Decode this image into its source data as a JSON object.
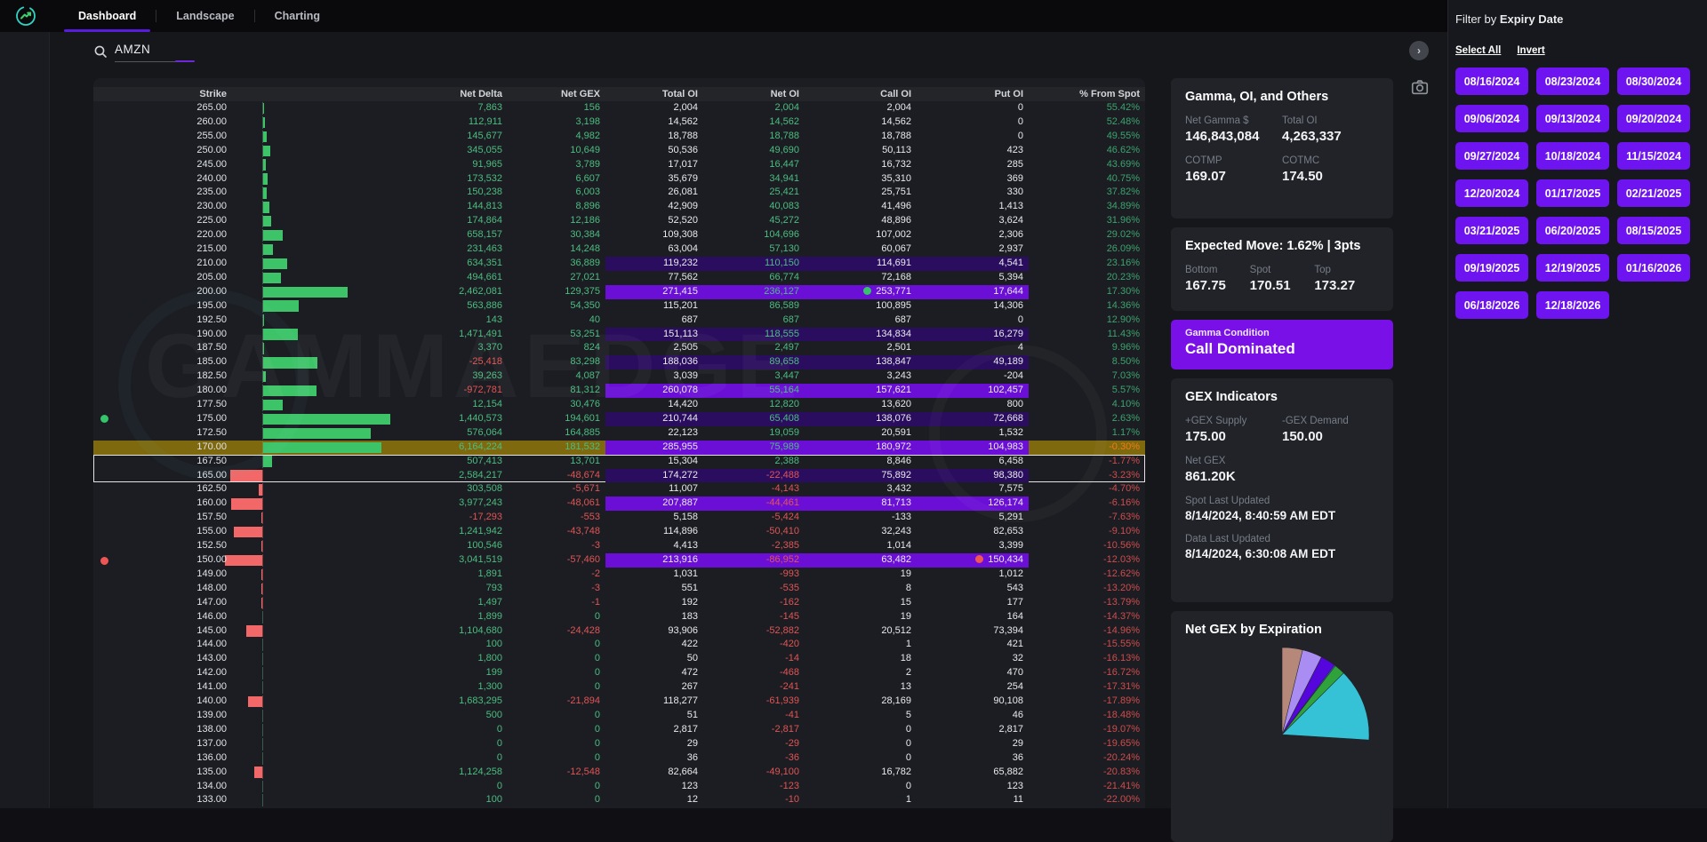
{
  "topbar": {
    "tabs": [
      {
        "label": "Dashboard",
        "active": true
      },
      {
        "label": "Landscape",
        "active": false
      },
      {
        "label": "Charting",
        "active": false
      }
    ]
  },
  "search": {
    "value": "AMZN"
  },
  "watermark": "GAMMAEDGE",
  "side_buttons": {
    "chevron": "›"
  },
  "table": {
    "columns": [
      "Strike",
      "Net Delta",
      "Net GEX",
      "Total OI",
      "Net OI",
      "Call OI",
      "Put OI",
      "% From Spot"
    ],
    "rows": [
      {
        "s": "265.00",
        "nd": "7,863",
        "gex": "156",
        "toi": "2,004",
        "noi": "2,004",
        "coi": "2,004",
        "poi": "0",
        "pct": "55.42%"
      },
      {
        "s": "260.00",
        "nd": "112,911",
        "gex": "3,198",
        "toi": "14,562",
        "noi": "14,562",
        "coi": "14,562",
        "poi": "0",
        "pct": "52.48%"
      },
      {
        "s": "255.00",
        "nd": "145,677",
        "gex": "4,982",
        "toi": "18,788",
        "noi": "18,788",
        "coi": "18,788",
        "poi": "0",
        "pct": "49.55%"
      },
      {
        "s": "250.00",
        "nd": "345,055",
        "gex": "10,649",
        "toi": "50,536",
        "noi": "49,690",
        "coi": "50,113",
        "poi": "423",
        "pct": "46.62%"
      },
      {
        "s": "245.00",
        "nd": "91,965",
        "gex": "3,789",
        "toi": "17,017",
        "noi": "16,447",
        "coi": "16,732",
        "poi": "285",
        "pct": "43.69%"
      },
      {
        "s": "240.00",
        "nd": "173,532",
        "gex": "6,607",
        "toi": "35,679",
        "noi": "34,941",
        "coi": "35,310",
        "poi": "369",
        "pct": "40.75%"
      },
      {
        "s": "235.00",
        "nd": "150,238",
        "gex": "6,003",
        "toi": "26,081",
        "noi": "25,421",
        "coi": "25,751",
        "poi": "330",
        "pct": "37.82%"
      },
      {
        "s": "230.00",
        "nd": "144,813",
        "gex": "8,896",
        "toi": "42,909",
        "noi": "40,083",
        "coi": "41,496",
        "poi": "1,413",
        "pct": "34.89%"
      },
      {
        "s": "225.00",
        "nd": "174,864",
        "gex": "12,186",
        "toi": "52,520",
        "noi": "45,272",
        "coi": "48,896",
        "poi": "3,624",
        "pct": "31.96%"
      },
      {
        "s": "220.00",
        "nd": "658,157",
        "gex": "30,384",
        "toi": "109,308",
        "noi": "104,696",
        "coi": "107,002",
        "poi": "2,306",
        "pct": "29.02%"
      },
      {
        "s": "215.00",
        "nd": "231,463",
        "gex": "14,248",
        "toi": "63,004",
        "noi": "57,130",
        "coi": "60,067",
        "poi": "2,937",
        "pct": "26.09%"
      },
      {
        "s": "210.00",
        "nd": "634,351",
        "gex": "36,889",
        "toi": "119,232",
        "noi": "110,150",
        "coi": "114,691",
        "poi": "4,541",
        "pct": "23.16%",
        "blk": "pd"
      },
      {
        "s": "205.00",
        "nd": "494,661",
        "gex": "27,021",
        "toi": "77,562",
        "noi": "66,774",
        "coi": "72,168",
        "poi": "5,394",
        "pct": "20.23%"
      },
      {
        "s": "200.00",
        "nd": "2,462,081",
        "gex": "129,375",
        "toi": "271,415",
        "noi": "236,127",
        "coi": "253,771",
        "poi": "17,644",
        "pct": "17.30%",
        "blk": "pb",
        "dc": "g"
      },
      {
        "s": "195.00",
        "nd": "563,886",
        "gex": "54,350",
        "toi": "115,201",
        "noi": "86,589",
        "coi": "100,895",
        "poi": "14,306",
        "pct": "14.36%"
      },
      {
        "s": "192.50",
        "nd": "143",
        "gex": "40",
        "toi": "687",
        "noi": "687",
        "coi": "687",
        "poi": "0",
        "pct": "12.90%"
      },
      {
        "s": "190.00",
        "nd": "1,471,491",
        "gex": "53,251",
        "toi": "151,113",
        "noi": "118,555",
        "coi": "134,834",
        "poi": "16,279",
        "pct": "11.43%",
        "blk": "pd"
      },
      {
        "s": "187.50",
        "nd": "3,370",
        "gex": "824",
        "toi": "2,505",
        "noi": "2,497",
        "coi": "2,501",
        "poi": "4",
        "pct": "9.96%"
      },
      {
        "s": "185.00",
        "nd": "-25,418",
        "gex": "83,298",
        "toi": "188,036",
        "noi": "89,658",
        "coi": "138,847",
        "poi": "49,189",
        "pct": "8.50%",
        "blk": "pd"
      },
      {
        "s": "182.50",
        "nd": "39,263",
        "gex": "4,087",
        "toi": "3,039",
        "noi": "3,447",
        "coi": "3,243",
        "poi": "-204",
        "pct": "7.03%"
      },
      {
        "s": "180.00",
        "nd": "-972,781",
        "gex": "81,312",
        "toi": "260,078",
        "noi": "55,164",
        "coi": "157,621",
        "poi": "102,457",
        "pct": "5.57%",
        "blk": "pb"
      },
      {
        "s": "177.50",
        "nd": "12,154",
        "gex": "30,476",
        "toi": "14,420",
        "noi": "12,820",
        "coi": "13,620",
        "poi": "800",
        "pct": "4.10%"
      },
      {
        "s": "175.00",
        "nd": "1,440,573",
        "gex": "194,601",
        "toi": "210,744",
        "noi": "65,408",
        "coi": "138,076",
        "poi": "72,668",
        "pct": "2.63%",
        "blk": "pd",
        "dl": "g"
      },
      {
        "s": "172.50",
        "nd": "576,064",
        "gex": "164,885",
        "toi": "22,123",
        "noi": "19,059",
        "coi": "20,591",
        "poi": "1,532",
        "pct": "1.17%"
      },
      {
        "s": "170.00",
        "nd": "6,164,224",
        "gex": "181,532",
        "toi": "285,955",
        "noi": "75,989",
        "coi": "180,972",
        "poi": "104,983",
        "pct": "-0.30%",
        "blk": "pb",
        "gold": true
      },
      {
        "s": "167.50",
        "nd": "507,413",
        "gex": "13,701",
        "toi": "15,304",
        "noi": "2,388",
        "coi": "8,846",
        "poi": "6,458",
        "pct": "-1.77%",
        "box": "t"
      },
      {
        "s": "165.00",
        "nd": "2,584,217",
        "gex": "-48,674",
        "toi": "174,272",
        "noi": "-22,488",
        "coi": "75,892",
        "poi": "98,380",
        "pct": "-3.23%",
        "blk": "pd",
        "box": "b"
      },
      {
        "s": "162.50",
        "nd": "303,508",
        "gex": "-5,671",
        "toi": "11,007",
        "noi": "-4,143",
        "coi": "3,432",
        "poi": "7,575",
        "pct": "-4.70%"
      },
      {
        "s": "160.00",
        "nd": "3,977,243",
        "gex": "-48,061",
        "toi": "207,887",
        "noi": "-44,461",
        "coi": "81,713",
        "poi": "126,174",
        "pct": "-6.16%",
        "blk": "pb"
      },
      {
        "s": "157.50",
        "nd": "-17,293",
        "gex": "-553",
        "toi": "5,158",
        "noi": "-5,424",
        "coi": "-133",
        "poi": "5,291",
        "pct": "-7.63%"
      },
      {
        "s": "155.00",
        "nd": "1,241,942",
        "gex": "-43,748",
        "toi": "114,896",
        "noi": "-50,410",
        "coi": "32,243",
        "poi": "82,653",
        "pct": "-9.10%"
      },
      {
        "s": "152.50",
        "nd": "100,546",
        "gex": "-3",
        "toi": "4,413",
        "noi": "-2,385",
        "coi": "1,014",
        "poi": "3,399",
        "pct": "-10.56%"
      },
      {
        "s": "150.00",
        "nd": "3,041,519",
        "gex": "-57,460",
        "toi": "213,916",
        "noi": "-86,952",
        "coi": "63,482",
        "poi": "150,434",
        "pct": "-12.03%",
        "blk": "pb",
        "dl": "r",
        "dp": "r"
      },
      {
        "s": "149.00",
        "nd": "1,891",
        "gex": "-2",
        "toi": "1,031",
        "noi": "-993",
        "coi": "19",
        "poi": "1,012",
        "pct": "-12.62%"
      },
      {
        "s": "148.00",
        "nd": "793",
        "gex": "-3",
        "toi": "551",
        "noi": "-535",
        "coi": "8",
        "poi": "543",
        "pct": "-13.20%"
      },
      {
        "s": "147.00",
        "nd": "1,497",
        "gex": "-1",
        "toi": "192",
        "noi": "-162",
        "coi": "15",
        "poi": "177",
        "pct": "-13.79%"
      },
      {
        "s": "146.00",
        "nd": "1,899",
        "gex": "0",
        "toi": "183",
        "noi": "-145",
        "coi": "19",
        "poi": "164",
        "pct": "-14.37%"
      },
      {
        "s": "145.00",
        "nd": "1,104,680",
        "gex": "-24,428",
        "toi": "93,906",
        "noi": "-52,882",
        "coi": "20,512",
        "poi": "73,394",
        "pct": "-14.96%"
      },
      {
        "s": "144.00",
        "nd": "100",
        "gex": "0",
        "toi": "422",
        "noi": "-420",
        "coi": "1",
        "poi": "421",
        "pct": "-15.55%"
      },
      {
        "s": "143.00",
        "nd": "1,800",
        "gex": "0",
        "toi": "50",
        "noi": "-14",
        "coi": "18",
        "poi": "32",
        "pct": "-16.13%"
      },
      {
        "s": "142.00",
        "nd": "199",
        "gex": "0",
        "toi": "472",
        "noi": "-468",
        "coi": "2",
        "poi": "470",
        "pct": "-16.72%"
      },
      {
        "s": "141.00",
        "nd": "1,300",
        "gex": "0",
        "toi": "267",
        "noi": "-241",
        "coi": "13",
        "poi": "254",
        "pct": "-17.31%"
      },
      {
        "s": "140.00",
        "nd": "1,683,295",
        "gex": "-21,894",
        "toi": "118,277",
        "noi": "-61,939",
        "coi": "28,169",
        "poi": "90,108",
        "pct": "-17.89%"
      },
      {
        "s": "139.00",
        "nd": "500",
        "gex": "0",
        "toi": "51",
        "noi": "-41",
        "coi": "5",
        "poi": "46",
        "pct": "-18.48%"
      },
      {
        "s": "138.00",
        "nd": "0",
        "gex": "0",
        "toi": "2,817",
        "noi": "-2,817",
        "coi": "0",
        "poi": "2,817",
        "pct": "-19.07%"
      },
      {
        "s": "137.00",
        "nd": "0",
        "gex": "0",
        "toi": "29",
        "noi": "-29",
        "coi": "0",
        "poi": "29",
        "pct": "-19.65%"
      },
      {
        "s": "136.00",
        "nd": "0",
        "gex": "0",
        "toi": "36",
        "noi": "-36",
        "coi": "0",
        "poi": "36",
        "pct": "-20.24%"
      },
      {
        "s": "135.00",
        "nd": "1,124,258",
        "gex": "-12,548",
        "toi": "82,664",
        "noi": "-49,100",
        "coi": "16,782",
        "poi": "65,882",
        "pct": "-20.83%"
      },
      {
        "s": "134.00",
        "nd": "0",
        "gex": "0",
        "toi": "123",
        "noi": "-123",
        "coi": "0",
        "poi": "123",
        "pct": "-21.41%"
      },
      {
        "s": "133.00",
        "nd": "100",
        "gex": "0",
        "toi": "12",
        "noi": "-10",
        "coi": "1",
        "poi": "11",
        "pct": "-22.00%"
      }
    ]
  },
  "cards": {
    "gamma_oi": {
      "title": "Gamma, OI, and Others",
      "items": [
        {
          "label": "Net Gamma $",
          "value": "146,843,084"
        },
        {
          "label": "Total OI",
          "value": "4,263,337"
        },
        {
          "label": "COTMP",
          "value": "169.07"
        },
        {
          "label": "COTMC",
          "value": "174.50"
        }
      ]
    },
    "expected_move": {
      "title": "Expected Move: 1.62% | 3pts",
      "items": [
        {
          "label": "Bottom",
          "value": "167.75"
        },
        {
          "label": "Spot",
          "value": "170.51"
        },
        {
          "label": "Top",
          "value": "173.27"
        }
      ]
    },
    "gamma_condition": {
      "label": "Gamma Condition",
      "value": "Call Dominated"
    },
    "gex_indicators": {
      "title": "GEX Indicators",
      "supply": {
        "label": "+GEX Supply",
        "value": "175.00"
      },
      "demand": {
        "label": "-GEX Demand",
        "value": "150.00"
      },
      "net_gex": {
        "label": "Net GEX",
        "value": "861.20K"
      },
      "spot_updated": {
        "label": "Spot Last Updated",
        "value": "8/14/2024, 8:40:59 AM EDT"
      },
      "data_updated": {
        "label": "Data Last Updated",
        "value": "8/14/2024, 6:30:08 AM EDT"
      }
    },
    "net_gex_expiry": {
      "title": "Net GEX by Expiration"
    }
  },
  "filter": {
    "title_prefix": "Filter by ",
    "title_bold": "Expiry Date",
    "select_all": "Select All",
    "invert": "Invert",
    "dates": [
      "08/16/2024",
      "08/23/2024",
      "08/30/2024",
      "09/06/2024",
      "09/13/2024",
      "09/20/2024",
      "09/27/2024",
      "10/18/2024",
      "11/15/2024",
      "12/20/2024",
      "01/17/2025",
      "02/21/2025",
      "03/21/2025",
      "06/20/2025",
      "08/15/2025",
      "09/19/2025",
      "12/19/2025",
      "01/16/2026",
      "06/18/2026",
      "12/18/2026"
    ]
  },
  "chart_data": {
    "type": "pie",
    "title": "Net GEX by Expiration",
    "labels_visible": false,
    "legend": false,
    "start_angle_deg": -90,
    "values": [
      4,
      2,
      2,
      2.2,
      2,
      1.4,
      0.9,
      1.1,
      1.4,
      0.8,
      1.1,
      1.1,
      0.8,
      0.5,
      0.6,
      26,
      12.5,
      10.5,
      10.3,
      7.5,
      7.5,
      3.8
    ],
    "colors": [
      "#d9ba9c",
      "#f6ecc3",
      "#fbf3d3",
      "#fb6a4a",
      "#f89e8e",
      "#fbb62c",
      "#fdd25b",
      "#38b6d2",
      "#3ba447",
      "#2d9e90",
      "#4478ea",
      "#500edb",
      "#b49af0",
      "#e2a8bc",
      "#a89cc4",
      "#35c2d7",
      "#2fa23c",
      "#4b7cf0",
      "#5506dc",
      "#7cc880",
      "#a98df2",
      "#b5887a"
    ]
  },
  "colors": {
    "accent_purple": "#6e14f0",
    "purple_bright": "#6b0fd6",
    "purple_dark": "#2a0d5e",
    "gold_row": "#7e690f",
    "green": "#4cbd80",
    "red": "#e05555"
  }
}
